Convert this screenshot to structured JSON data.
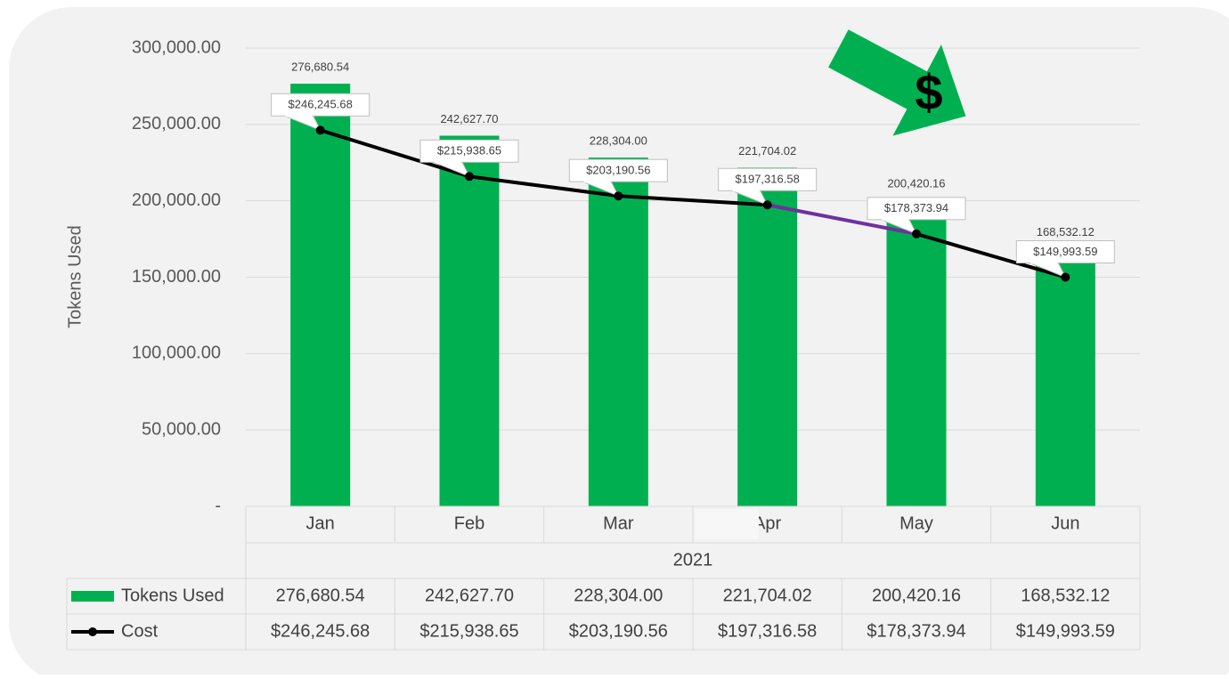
{
  "chart_data": {
    "type": "bar-line",
    "y_axis_label": "Tokens Used",
    "x_group_label": "2021",
    "categories": [
      "Jan",
      "Feb",
      "Mar",
      "Apr",
      "May",
      "Jun"
    ],
    "series": [
      {
        "name": "Tokens Used",
        "type": "bar",
        "color": "#00b050",
        "values": [
          276680.54,
          242627.7,
          228304.0,
          221704.02,
          200420.16,
          168532.12
        ],
        "value_labels": [
          "276,680.54",
          "242,627.70",
          "228,304.00",
          "221,704.02",
          "200,420.16",
          "168,532.12"
        ]
      },
      {
        "name": "Cost",
        "type": "line",
        "color": "#000000",
        "highlight_color": "#7030a0",
        "highlight_segment": 3,
        "values": [
          246245.68,
          215938.65,
          203190.56,
          197316.58,
          178373.94,
          149993.59
        ],
        "value_labels": [
          "$246,245.68",
          "$215,938.65",
          "$203,190.56",
          "$197,316.58",
          "$178,373.94",
          "$149,993.59"
        ]
      }
    ],
    "ylim": [
      0,
      300000
    ],
    "yticks": [
      {
        "value": 0,
        "label": "-"
      },
      {
        "value": 50000,
        "label": "50,000.00"
      },
      {
        "value": 100000,
        "label": "100,000.00"
      },
      {
        "value": 150000,
        "label": "150,000.00"
      },
      {
        "value": 200000,
        "label": "200,000.00"
      },
      {
        "value": 250000,
        "label": "250,000.00"
      },
      {
        "value": 300000,
        "label": "300,000.00"
      }
    ],
    "grid": true,
    "data_table": true
  }
}
